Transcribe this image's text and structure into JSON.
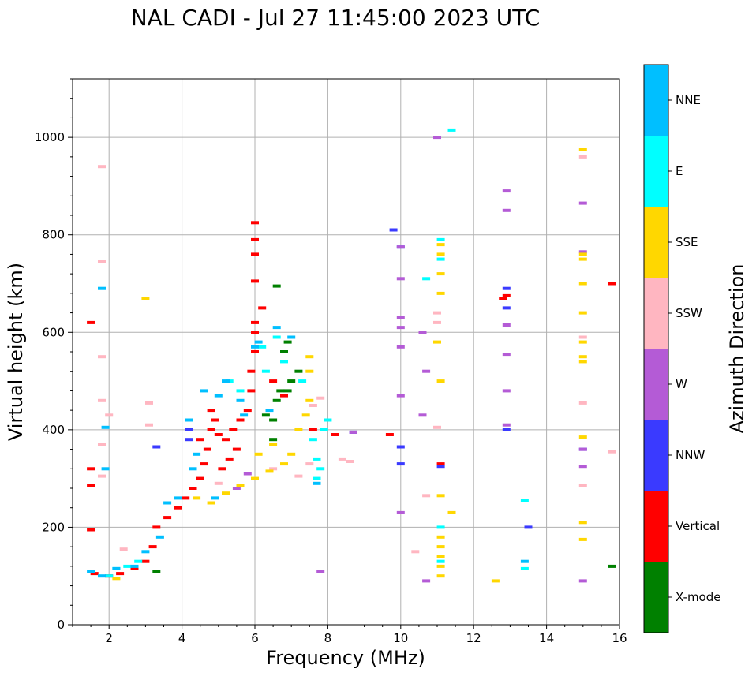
{
  "chart_data": {
    "type": "scatter",
    "title": "NAL CADI - Jul 27 11:45:00 2023 UTC",
    "xlabel": "Frequency (MHz)",
    "ylabel": "Virtual height (km)",
    "xlim": [
      1,
      16
    ],
    "ylim": [
      0,
      1120
    ],
    "xticks": [
      2,
      4,
      6,
      8,
      10,
      12,
      14,
      16
    ],
    "yticks": [
      0,
      200,
      400,
      600,
      800,
      1000
    ],
    "grid": true,
    "colorbar": {
      "label": "Azimuth Direction",
      "categories": [
        {
          "name": "X-mode",
          "color": "#008000"
        },
        {
          "name": "Vertical",
          "color": "#ff0000"
        },
        {
          "name": "NNW",
          "color": "#3a3aff"
        },
        {
          "name": "W",
          "color": "#b45bd6"
        },
        {
          "name": "SSW",
          "color": "#ffb6c1"
        },
        {
          "name": "SSE",
          "color": "#ffd700"
        },
        {
          "name": "E",
          "color": "#00ffff"
        },
        {
          "name": "NNE",
          "color": "#00bfff"
        }
      ]
    },
    "series": [
      {
        "name": "X-mode",
        "points": [
          [
            3.3,
            110
          ],
          [
            6.5,
            380
          ],
          [
            6.3,
            430
          ],
          [
            6.6,
            460
          ],
          [
            6.9,
            480
          ],
          [
            7.0,
            500
          ],
          [
            7.2,
            520
          ],
          [
            6.8,
            560
          ],
          [
            6.9,
            580
          ],
          [
            6.6,
            695
          ],
          [
            15.8,
            120
          ],
          [
            6.7,
            480
          ],
          [
            6.5,
            420
          ]
        ]
      },
      {
        "name": "Vertical",
        "points": [
          [
            1.5,
            195
          ],
          [
            1.5,
            285
          ],
          [
            1.5,
            320
          ],
          [
            1.5,
            620
          ],
          [
            1.6,
            105
          ],
          [
            2.0,
            100
          ],
          [
            2.3,
            105
          ],
          [
            2.7,
            115
          ],
          [
            3.0,
            130
          ],
          [
            3.2,
            160
          ],
          [
            3.3,
            200
          ],
          [
            3.6,
            220
          ],
          [
            3.9,
            240
          ],
          [
            4.1,
            260
          ],
          [
            4.3,
            280
          ],
          [
            4.5,
            300
          ],
          [
            4.6,
            330
          ],
          [
            4.7,
            360
          ],
          [
            4.8,
            400
          ],
          [
            4.9,
            420
          ],
          [
            5.0,
            390
          ],
          [
            5.2,
            380
          ],
          [
            5.4,
            400
          ],
          [
            5.6,
            420
          ],
          [
            5.8,
            440
          ],
          [
            5.9,
            480
          ],
          [
            5.9,
            520
          ],
          [
            6.0,
            560
          ],
          [
            6.0,
            600
          ],
          [
            6.0,
            620
          ],
          [
            6.2,
            650
          ],
          [
            6.0,
            705
          ],
          [
            6.0,
            760
          ],
          [
            6.0,
            790
          ],
          [
            6.0,
            825
          ],
          [
            4.8,
            440
          ],
          [
            4.5,
            380
          ],
          [
            5.5,
            360
          ],
          [
            8.2,
            390
          ],
          [
            9.7,
            390
          ],
          [
            11.1,
            330
          ],
          [
            12.8,
            670
          ],
          [
            12.9,
            675
          ],
          [
            15.8,
            700
          ],
          [
            7.6,
            400
          ],
          [
            6.5,
            500
          ],
          [
            6.8,
            470
          ],
          [
            5.1,
            320
          ],
          [
            5.3,
            340
          ]
        ]
      },
      {
        "name": "NNW",
        "points": [
          [
            3.3,
            365
          ],
          [
            4.2,
            400
          ],
          [
            4.2,
            380
          ],
          [
            10.0,
            365
          ],
          [
            10.0,
            330
          ],
          [
            11.1,
            325
          ],
          [
            12.9,
            400
          ],
          [
            12.9,
            690
          ],
          [
            12.9,
            650
          ],
          [
            13.5,
            200
          ],
          [
            15.0,
            360
          ],
          [
            8.7,
            395
          ],
          [
            9.8,
            810
          ],
          [
            10.0,
            775
          ]
        ]
      },
      {
        "name": "W",
        "points": [
          [
            8.7,
            395
          ],
          [
            10.0,
            230
          ],
          [
            10.0,
            470
          ],
          [
            10.0,
            570
          ],
          [
            10.0,
            610
          ],
          [
            10.0,
            630
          ],
          [
            10.0,
            710
          ],
          [
            10.0,
            775
          ],
          [
            10.6,
            430
          ],
          [
            10.6,
            600
          ],
          [
            10.7,
            520
          ],
          [
            10.7,
            90
          ],
          [
            11.0,
            1000
          ],
          [
            12.9,
            410
          ],
          [
            12.9,
            480
          ],
          [
            12.9,
            555
          ],
          [
            12.9,
            615
          ],
          [
            12.9,
            850
          ],
          [
            12.9,
            890
          ],
          [
            15.0,
            90
          ],
          [
            15.0,
            325
          ],
          [
            15.0,
            360
          ],
          [
            15.0,
            865
          ],
          [
            15.0,
            765
          ],
          [
            7.8,
            110
          ],
          [
            5.5,
            280
          ],
          [
            5.8,
            310
          ]
        ]
      },
      {
        "name": "SSW",
        "points": [
          [
            1.8,
            305
          ],
          [
            1.8,
            370
          ],
          [
            1.8,
            460
          ],
          [
            1.8,
            550
          ],
          [
            1.8,
            745
          ],
          [
            1.8,
            940
          ],
          [
            2.0,
            430
          ],
          [
            2.4,
            155
          ],
          [
            3.1,
            455
          ],
          [
            3.1,
            410
          ],
          [
            7.6,
            450
          ],
          [
            7.8,
            465
          ],
          [
            8.4,
            340
          ],
          [
            8.6,
            335
          ],
          [
            10.4,
            150
          ],
          [
            10.7,
            265
          ],
          [
            11.0,
            405
          ],
          [
            11.0,
            620
          ],
          [
            11.0,
            640
          ],
          [
            15.0,
            285
          ],
          [
            15.0,
            455
          ],
          [
            15.0,
            590
          ],
          [
            15.0,
            960
          ],
          [
            15.8,
            355
          ],
          [
            5.0,
            290
          ],
          [
            6.5,
            320
          ],
          [
            7.2,
            305
          ],
          [
            7.5,
            330
          ]
        ]
      },
      {
        "name": "SSE",
        "points": [
          [
            2.2,
            95
          ],
          [
            3.0,
            670
          ],
          [
            4.4,
            260
          ],
          [
            4.8,
            250
          ],
          [
            5.2,
            270
          ],
          [
            5.6,
            285
          ],
          [
            6.0,
            300
          ],
          [
            6.4,
            315
          ],
          [
            6.8,
            330
          ],
          [
            7.0,
            350
          ],
          [
            7.2,
            400
          ],
          [
            7.4,
            430
          ],
          [
            7.5,
            460
          ],
          [
            7.5,
            520
          ],
          [
            7.5,
            550
          ],
          [
            6.1,
            350
          ],
          [
            6.5,
            370
          ],
          [
            11.1,
            100
          ],
          [
            11.1,
            120
          ],
          [
            11.1,
            140
          ],
          [
            11.1,
            160
          ],
          [
            11.1,
            180
          ],
          [
            11.1,
            265
          ],
          [
            11.1,
            500
          ],
          [
            11.1,
            680
          ],
          [
            11.1,
            720
          ],
          [
            11.1,
            760
          ],
          [
            11.1,
            780
          ],
          [
            11.0,
            580
          ],
          [
            12.6,
            90
          ],
          [
            15.0,
            175
          ],
          [
            15.0,
            210
          ],
          [
            15.0,
            385
          ],
          [
            15.0,
            540
          ],
          [
            15.0,
            550
          ],
          [
            15.0,
            580
          ],
          [
            15.0,
            640
          ],
          [
            15.0,
            700
          ],
          [
            15.0,
            750
          ],
          [
            15.0,
            760
          ],
          [
            15.0,
            975
          ],
          [
            11.4,
            230
          ]
        ]
      },
      {
        "name": "E",
        "points": [
          [
            2.0,
            100
          ],
          [
            2.2,
            115
          ],
          [
            2.5,
            120
          ],
          [
            2.8,
            130
          ],
          [
            5.3,
            500
          ],
          [
            5.6,
            480
          ],
          [
            6.2,
            570
          ],
          [
            6.3,
            520
          ],
          [
            6.6,
            590
          ],
          [
            6.8,
            540
          ],
          [
            7.3,
            500
          ],
          [
            7.6,
            380
          ],
          [
            7.7,
            340
          ],
          [
            7.8,
            320
          ],
          [
            11.1,
            200
          ],
          [
            11.1,
            130
          ],
          [
            11.1,
            750
          ],
          [
            11.1,
            790
          ],
          [
            13.4,
            115
          ],
          [
            13.4,
            255
          ],
          [
            11.4,
            1015
          ],
          [
            10.7,
            710
          ],
          [
            8.0,
            420
          ],
          [
            7.9,
            400
          ],
          [
            7.7,
            300
          ]
        ]
      },
      {
        "name": "NNE",
        "points": [
          [
            1.5,
            110
          ],
          [
            1.8,
            100
          ],
          [
            1.8,
            690
          ],
          [
            1.9,
            405
          ],
          [
            1.9,
            320
          ],
          [
            2.2,
            115
          ],
          [
            2.7,
            120
          ],
          [
            3.0,
            150
          ],
          [
            3.4,
            180
          ],
          [
            3.6,
            250
          ],
          [
            3.9,
            260
          ],
          [
            4.2,
            420
          ],
          [
            4.3,
            320
          ],
          [
            4.6,
            480
          ],
          [
            5.0,
            470
          ],
          [
            5.2,
            500
          ],
          [
            5.6,
            460
          ],
          [
            6.0,
            570
          ],
          [
            6.1,
            580
          ],
          [
            6.6,
            610
          ],
          [
            7.0,
            590
          ],
          [
            7.7,
            290
          ],
          [
            13.4,
            130
          ],
          [
            4.4,
            350
          ],
          [
            4.9,
            260
          ],
          [
            5.7,
            430
          ],
          [
            6.4,
            440
          ]
        ]
      }
    ]
  }
}
